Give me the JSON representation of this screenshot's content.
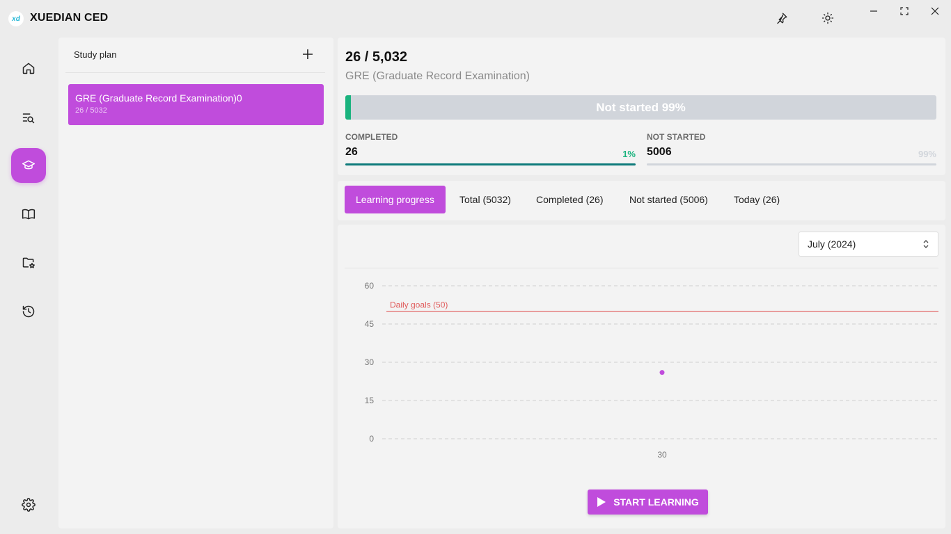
{
  "app": {
    "logo_text": "xd",
    "title": "XUEDIAN CED"
  },
  "titlebar_icons": [
    "pin-icon",
    "brightness-icon"
  ],
  "window_controls": [
    "minimize-icon",
    "maximize-icon",
    "close-icon"
  ],
  "nav": {
    "items": [
      {
        "icon": "home-icon",
        "active": false
      },
      {
        "icon": "search-list-icon",
        "active": false
      },
      {
        "icon": "graduation-cap-icon",
        "active": true
      },
      {
        "icon": "book-icon",
        "active": false
      },
      {
        "icon": "star-folder-icon",
        "active": false
      },
      {
        "icon": "history-icon",
        "active": false
      }
    ],
    "settings_icon": "gear-icon"
  },
  "study_plan": {
    "title": "Study plan",
    "add_icon": "plus-icon",
    "plans": [
      {
        "name": "GRE (Graduate Record Examination)0",
        "progress": "26 / 5032"
      }
    ]
  },
  "summary": {
    "count": "26 / 5,032",
    "name": "GRE (Graduate Record Examination)",
    "bar_label": "Not started 99%",
    "bar_fill_fraction": 0.01,
    "completed": {
      "label": "COMPLETED",
      "value": "26",
      "percent": "1%"
    },
    "not_started": {
      "label": "NOT STARTED",
      "value": "5006",
      "percent": "99%"
    },
    "colors": {
      "accent": "#c04cdc",
      "completed": "#1ab37e",
      "completed_line": "#0e7a7a",
      "muted": "#d1d5db"
    }
  },
  "tabs": [
    {
      "label": "Learning progress",
      "active": true
    },
    {
      "label": "Total (5032)",
      "active": false
    },
    {
      "label": "Completed (26)",
      "active": false
    },
    {
      "label": "Not started (5006)",
      "active": false
    },
    {
      "label": "Today (26)",
      "active": false
    }
  ],
  "month_select": {
    "value": "July (2024)"
  },
  "chart_data": {
    "type": "scatter",
    "x": [
      30
    ],
    "y": [
      26
    ],
    "x_ticks": [
      "30"
    ],
    "y_ticks": [
      0,
      15,
      30,
      45,
      60
    ],
    "ylim": [
      0,
      60
    ],
    "grid": true,
    "point_color": "#c04cdc",
    "goal_line": {
      "value": 50,
      "label": "Daily goals (50)",
      "color": "#e05a5a"
    }
  },
  "start_button": {
    "label": "START LEARNING",
    "icon": "play-icon"
  }
}
